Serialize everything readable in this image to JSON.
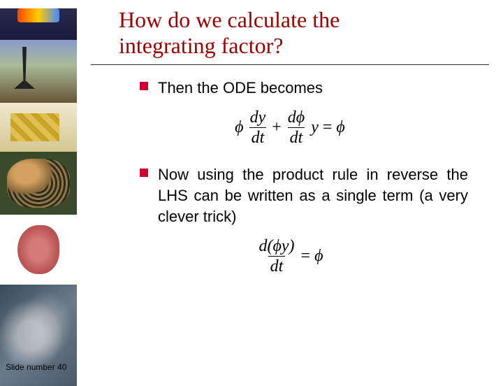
{
  "title_line1": "How do we calculate the",
  "title_line2": "integrating factor?",
  "bullets": [
    {
      "text": "Then the ODE becomes"
    },
    {
      "text": "Now using the product rule in reverse the LHS can be written as a single term (a very clever trick)"
    }
  ],
  "equations": {
    "eq1": {
      "lhs_term1_coef": "ϕ",
      "lhs_term1_num": "dy",
      "lhs_term1_den": "dt",
      "plus": "+",
      "lhs_term2_num": "dϕ",
      "lhs_term2_den": "dt",
      "lhs_term2_tail": "y",
      "eq": "=",
      "rhs": "ϕ"
    },
    "eq2": {
      "num": "d(ϕy)",
      "den": "dt",
      "eq": "=",
      "rhs": "ϕ"
    }
  },
  "footer": "Slide number 40",
  "colors": {
    "title": "#990000",
    "bullet": "#cc0033",
    "text": "#000000",
    "background": "#ffffff"
  },
  "fonts": {
    "title_family": "Times New Roman",
    "title_size_pt": 32,
    "body_family": "Arial",
    "body_size_pt": 22,
    "eq_family": "Times New Roman",
    "eq_size_pt": 24,
    "footer_size_pt": 12
  }
}
